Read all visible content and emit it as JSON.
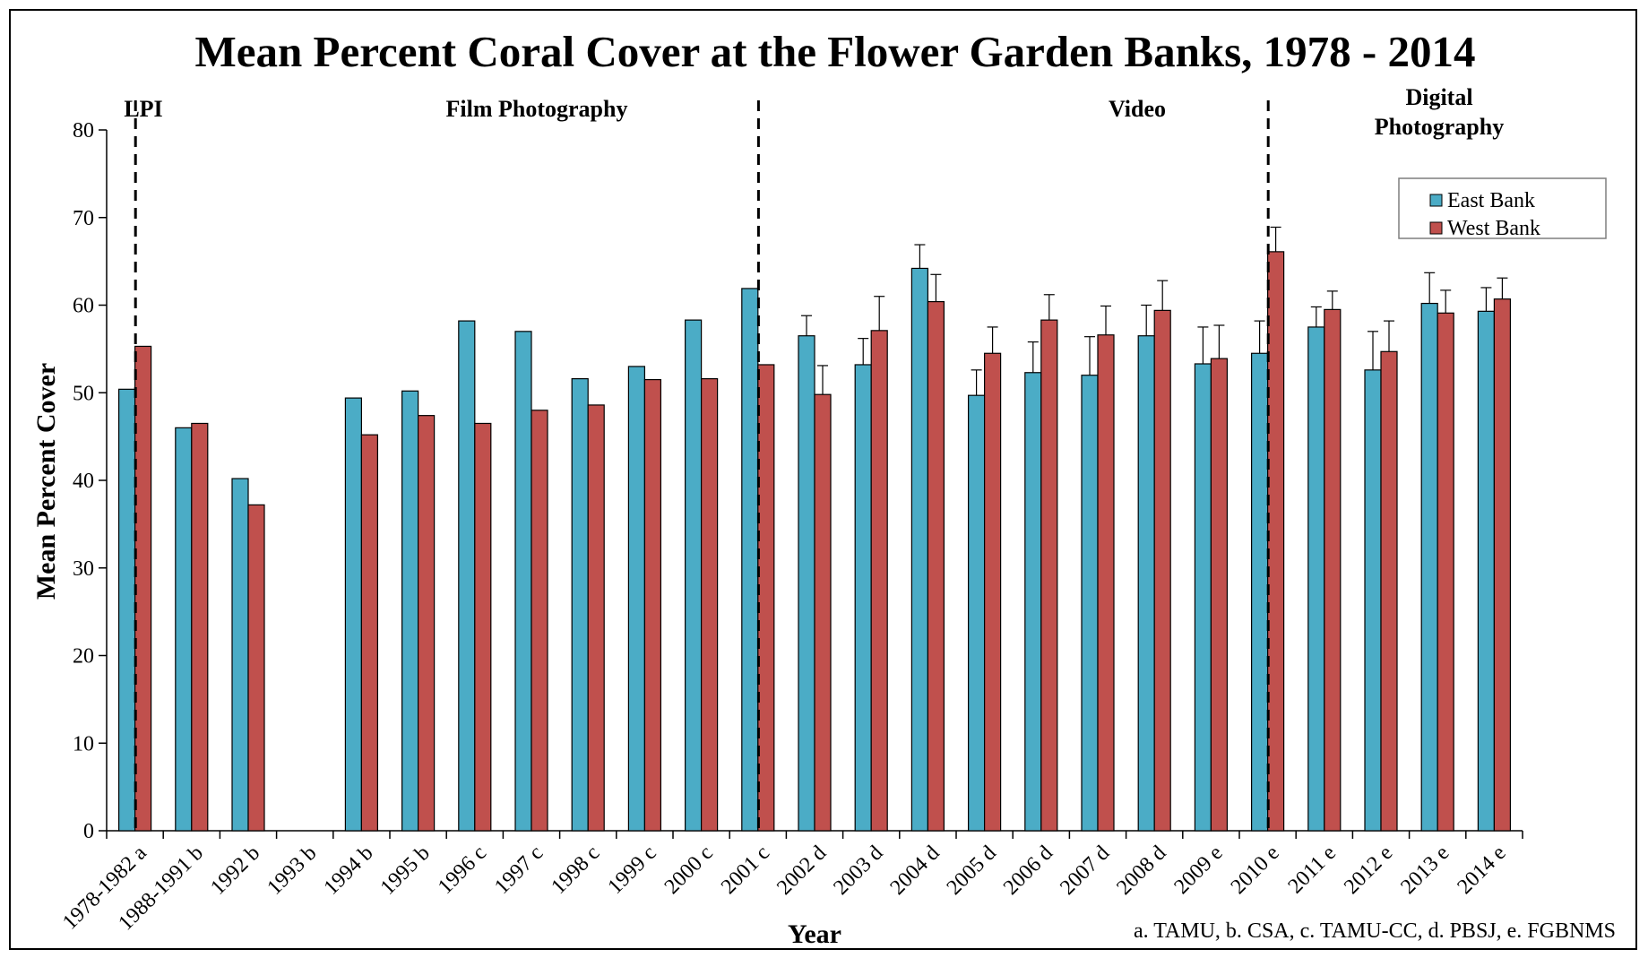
{
  "chart_data": {
    "type": "bar",
    "title": "Mean Percent Coral Cover at the Flower Garden Banks,  1978 - 2014",
    "xlabel": "Year",
    "ylabel": "Mean Percent Cover",
    "ylim": [
      0,
      80
    ],
    "yticks": [
      0,
      10,
      20,
      30,
      40,
      50,
      60,
      70,
      80
    ],
    "grid": false,
    "legend_position": "top-right",
    "categories": [
      "1978-1982 a",
      "1988-1991 b",
      "1992 b",
      "1993 b",
      "1994 b",
      "1995 b",
      "1996 c",
      "1997 c",
      "1998 c",
      "1999 c",
      "2000 c",
      "2001 c",
      "2002 d",
      "2003 d",
      "2004 d",
      "2005 d",
      "2006 d",
      "2007 d",
      "2008 d",
      "2009 e",
      "2010 e",
      "2011 e",
      "2012 e",
      "2013 e",
      "2014 e"
    ],
    "series": [
      {
        "name": "East Bank",
        "color": "#4bacc6",
        "values": [
          50.4,
          46.0,
          40.2,
          null,
          49.4,
          50.2,
          58.2,
          57.0,
          51.6,
          53.0,
          58.3,
          61.9,
          56.5,
          53.2,
          64.2,
          49.7,
          52.3,
          52.0,
          56.5,
          53.3,
          54.5,
          57.5,
          52.6,
          60.2,
          59.3
        ],
        "error_plus": [
          null,
          null,
          null,
          null,
          null,
          null,
          null,
          null,
          null,
          null,
          null,
          null,
          2.3,
          3.0,
          2.7,
          2.9,
          3.5,
          4.4,
          3.5,
          4.2,
          3.7,
          2.3,
          4.4,
          3.5,
          2.7
        ]
      },
      {
        "name": "West Bank",
        "color": "#c0504d",
        "values": [
          55.3,
          46.5,
          37.2,
          null,
          45.2,
          47.4,
          46.5,
          48.0,
          48.6,
          51.5,
          51.6,
          53.2,
          49.8,
          57.1,
          60.4,
          54.5,
          58.3,
          56.6,
          59.4,
          53.9,
          66.1,
          59.5,
          54.7,
          59.1,
          60.7
        ],
        "error_plus": [
          null,
          null,
          null,
          null,
          null,
          null,
          null,
          null,
          null,
          null,
          null,
          null,
          3.3,
          3.9,
          3.1,
          3.0,
          2.9,
          3.3,
          3.4,
          3.8,
          2.8,
          2.1,
          3.5,
          2.6,
          2.4
        ]
      }
    ],
    "method_sections": [
      {
        "label_lines": [
          "LPI"
        ]
      },
      {
        "label_lines": [
          "Film Photography"
        ]
      },
      {
        "label_lines": [
          "Video"
        ]
      },
      {
        "label_lines": [
          "Digital",
          "Photography"
        ]
      }
    ],
    "source_note": "a. TAMU,  b. CSA,  c. TAMU-CC,  d. PBSJ,  e. FGBNMS"
  }
}
